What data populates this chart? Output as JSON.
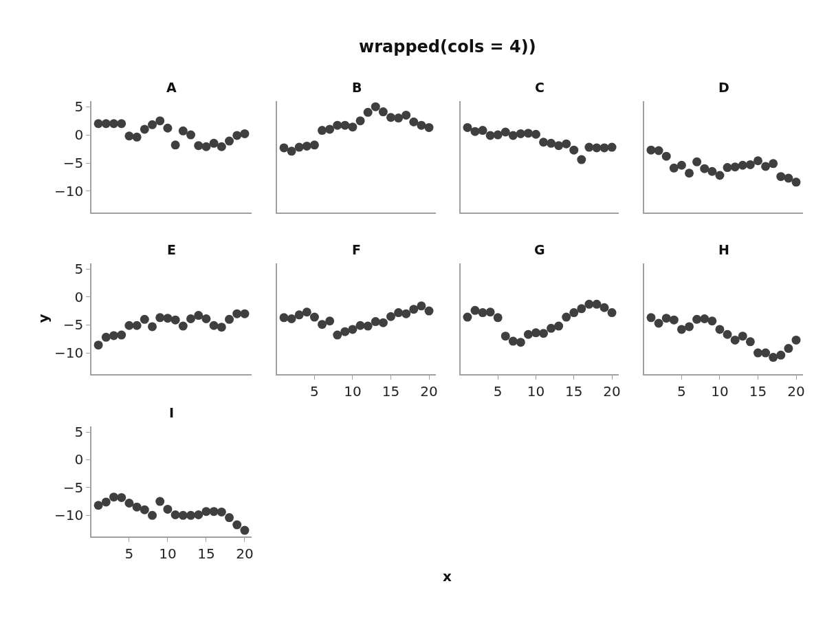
{
  "chart_data": [
    {
      "type": "scatter",
      "title": "A",
      "annotations": [
        "wrapped(cols = 4))"
      ],
      "x": [
        1,
        2,
        3,
        4,
        5,
        6,
        7,
        8,
        9,
        10,
        11,
        12,
        13,
        14,
        15,
        16,
        17,
        18,
        19,
        20
      ],
      "values": [
        2.0,
        2.0,
        2.0,
        2.0,
        -0.2,
        -0.4,
        1.0,
        1.8,
        2.5,
        1.2,
        -1.8,
        0.7,
        0.0,
        -1.9,
        -2.1,
        -1.5,
        -2.1,
        -1.1,
        -0.1,
        0.2
      ],
      "color": "#3f3f3f",
      "marker": "circle",
      "xlim": [
        0.1,
        20.9
      ],
      "ylim": [
        -13.8,
        6
      ],
      "yticks": [
        5,
        0,
        -5,
        -10
      ],
      "tick_labels": "y"
    },
    {
      "type": "scatter",
      "title": "B",
      "x": [
        1,
        2,
        3,
        4,
        5,
        6,
        7,
        8,
        9,
        10,
        11,
        12,
        13,
        14,
        15,
        16,
        17,
        18,
        19,
        20
      ],
      "values": [
        -2.3,
        -2.9,
        -2.2,
        -2.0,
        -1.8,
        0.8,
        1.0,
        1.7,
        1.7,
        1.4,
        2.5,
        4.0,
        5.0,
        4.1,
        3.1,
        3.0,
        3.5,
        2.3,
        1.7,
        1.3
      ],
      "color": "#3f3f3f",
      "marker": "circle",
      "xlim": [
        0.1,
        20.9
      ],
      "ylim": [
        -13.8,
        6
      ],
      "tick_labels": false
    },
    {
      "type": "scatter",
      "title": "C",
      "x": [
        1,
        2,
        3,
        4,
        5,
        6,
        7,
        8,
        9,
        10,
        11,
        12,
        13,
        14,
        15,
        16,
        17,
        18,
        19,
        20
      ],
      "values": [
        1.3,
        0.6,
        0.8,
        -0.1,
        0.0,
        0.5,
        -0.1,
        0.2,
        0.3,
        0.1,
        -1.3,
        -1.5,
        -1.9,
        -1.6,
        -2.7,
        -4.4,
        -2.2,
        -2.3,
        -2.3,
        -2.2
      ],
      "color": "#3f3f3f",
      "marker": "circle",
      "xlim": [
        0.1,
        20.9
      ],
      "ylim": [
        -13.8,
        6
      ],
      "tick_labels": false
    },
    {
      "type": "scatter",
      "title": "D",
      "x": [
        1,
        2,
        3,
        4,
        5,
        6,
        7,
        8,
        9,
        10,
        11,
        12,
        13,
        14,
        15,
        16,
        17,
        18,
        19,
        20
      ],
      "values": [
        -2.7,
        -2.8,
        -3.8,
        -5.9,
        -5.4,
        -6.8,
        -4.8,
        -6.0,
        -6.5,
        -7.2,
        -5.8,
        -5.7,
        -5.4,
        -5.3,
        -4.6,
        -5.6,
        -5.1,
        -7.4,
        -7.7,
        -8.4
      ],
      "color": "#3f3f3f",
      "marker": "circle",
      "xlim": [
        0.1,
        20.9
      ],
      "ylim": [
        -13.8,
        6
      ],
      "tick_labels": false
    },
    {
      "type": "scatter",
      "title": "E",
      "ylabel": "y",
      "x": [
        1,
        2,
        3,
        4,
        5,
        6,
        7,
        8,
        9,
        10,
        11,
        12,
        13,
        14,
        15,
        16,
        17,
        18,
        19,
        20
      ],
      "values": [
        -8.6,
        -7.2,
        -6.9,
        -6.8,
        -5.1,
        -5.1,
        -4.0,
        -5.3,
        -3.7,
        -3.8,
        -4.1,
        -5.2,
        -3.9,
        -3.3,
        -3.9,
        -5.1,
        -5.4,
        -4.0,
        -3.0,
        -3.0
      ],
      "color": "#3f3f3f",
      "marker": "circle",
      "xlim": [
        0.1,
        20.9
      ],
      "ylim": [
        -13.8,
        6
      ],
      "yticks": [
        5,
        0,
        -5,
        -10
      ],
      "tick_labels": "y"
    },
    {
      "type": "scatter",
      "title": "F",
      "xlabel": "x",
      "x": [
        1,
        2,
        3,
        4,
        5,
        6,
        7,
        8,
        9,
        10,
        11,
        12,
        13,
        14,
        15,
        16,
        17,
        18,
        19,
        20
      ],
      "values": [
        -3.7,
        -3.9,
        -3.2,
        -2.7,
        -3.6,
        -4.9,
        -4.3,
        -6.8,
        -6.2,
        -5.8,
        -5.1,
        -5.2,
        -4.4,
        -4.6,
        -3.5,
        -2.8,
        -3.0,
        -2.2,
        -1.6,
        -2.5
      ],
      "color": "#3f3f3f",
      "marker": "circle",
      "xlim": [
        0.1,
        20.9
      ],
      "ylim": [
        -13.8,
        6
      ],
      "xticks": [
        5,
        10,
        15,
        20
      ],
      "tick_labels": "x"
    },
    {
      "type": "scatter",
      "title": "G",
      "x": [
        1,
        2,
        3,
        4,
        5,
        6,
        7,
        8,
        9,
        10,
        11,
        12,
        13,
        14,
        15,
        16,
        17,
        18,
        19,
        20
      ],
      "values": [
        -3.6,
        -2.4,
        -2.8,
        -2.7,
        -3.7,
        -7.0,
        -7.9,
        -8.1,
        -6.7,
        -6.4,
        -6.5,
        -5.6,
        -5.2,
        -3.6,
        -2.8,
        -2.1,
        -1.3,
        -1.3,
        -1.9,
        -2.8
      ],
      "color": "#3f3f3f",
      "marker": "circle",
      "xlim": [
        0.1,
        20.9
      ],
      "ylim": [
        -13.8,
        6
      ],
      "xticks": [
        5,
        10,
        15,
        20
      ],
      "tick_labels": "x"
    },
    {
      "type": "scatter",
      "title": "H",
      "x": [
        1,
        2,
        3,
        4,
        5,
        6,
        7,
        8,
        9,
        10,
        11,
        12,
        13,
        14,
        15,
        16,
        17,
        18,
        19,
        20
      ],
      "values": [
        -3.7,
        -4.7,
        -3.8,
        -4.1,
        -5.8,
        -5.3,
        -4.0,
        -3.9,
        -4.3,
        -5.8,
        -6.7,
        -7.7,
        -7.0,
        -8.0,
        -10.0,
        -10.0,
        -10.8,
        -10.4,
        -9.2,
        -7.7
      ],
      "color": "#3f3f3f",
      "marker": "circle",
      "xlim": [
        0.1,
        20.9
      ],
      "ylim": [
        -13.8,
        6
      ],
      "xticks": [
        5,
        10,
        15,
        20
      ],
      "tick_labels": "x"
    },
    {
      "type": "scatter",
      "title": "I",
      "x": [
        1,
        2,
        3,
        4,
        5,
        6,
        7,
        8,
        9,
        10,
        11,
        12,
        13,
        14,
        15,
        16,
        17,
        18,
        19,
        20
      ],
      "values": [
        -8.2,
        -7.6,
        -6.7,
        -6.8,
        -7.8,
        -8.5,
        -9.0,
        -10.0,
        -7.5,
        -8.9,
        -9.9,
        -10.0,
        -10.0,
        -9.9,
        -9.3,
        -9.3,
        -9.4,
        -10.4,
        -11.7,
        -12.7
      ],
      "color": "#3f3f3f",
      "marker": "circle",
      "xlim": [
        0.1,
        20.9
      ],
      "ylim": [
        -13.8,
        6
      ],
      "xticks": [
        5,
        10,
        15,
        20
      ],
      "yticks": [
        5,
        0,
        -5,
        -10
      ]
    }
  ]
}
